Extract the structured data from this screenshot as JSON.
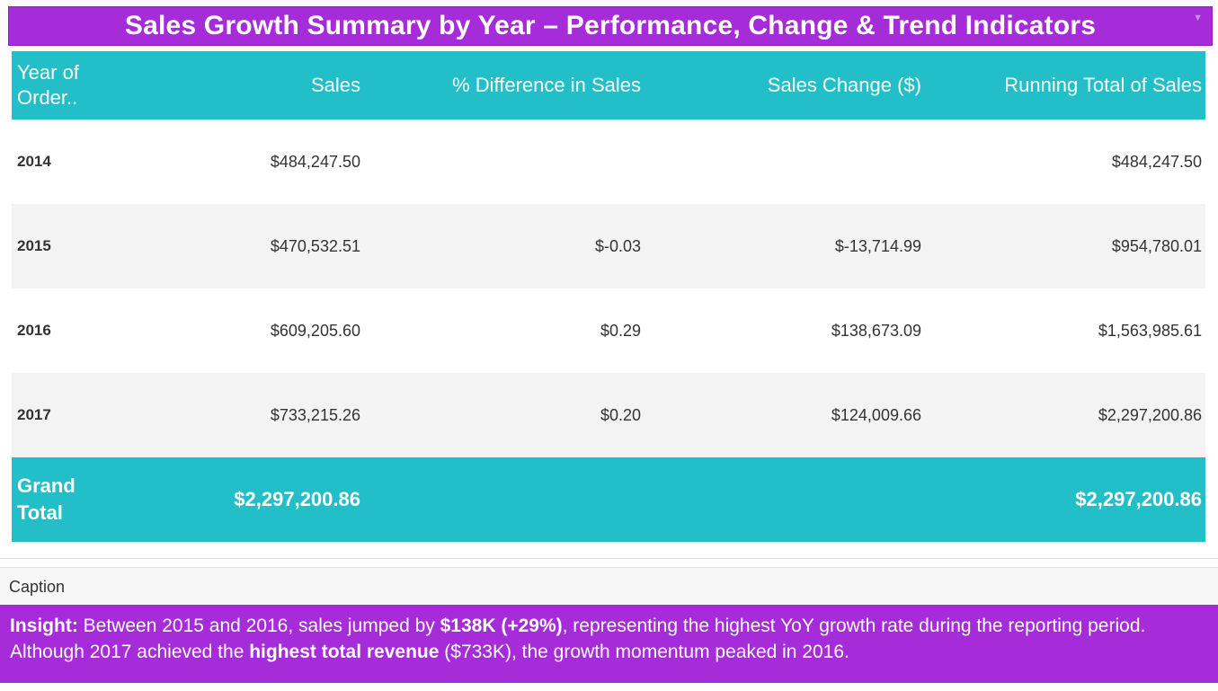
{
  "title": "Sales Growth Summary by Year – Performance, Change & Trend Indicators",
  "menu_glyph": "▼",
  "colors": {
    "accent_purple": "#a62bd9",
    "header_teal": "#22bfc8",
    "alt_row": "#f3f3f3"
  },
  "table": {
    "headers": [
      "Year of\nOrder..",
      "Sales",
      "% Difference in Sales",
      "Sales Change ($)",
      "Running Total of Sales"
    ],
    "header_year_line1": "Year of",
    "header_year_line2": "Order..",
    "rows": [
      {
        "year": "2014",
        "sales": "$484,247.50",
        "pct_diff": "",
        "change": "",
        "running_total": "$484,247.50"
      },
      {
        "year": "2015",
        "sales": "$470,532.51",
        "pct_diff": "$-0.03",
        "change": "$-13,714.99",
        "running_total": "$954,780.01"
      },
      {
        "year": "2016",
        "sales": "$609,205.60",
        "pct_diff": "$0.29",
        "change": "$138,673.09",
        "running_total": "$1,563,985.61"
      },
      {
        "year": "2017",
        "sales": "$733,215.26",
        "pct_diff": "$0.20",
        "change": "$124,009.66",
        "running_total": "$2,297,200.86"
      }
    ],
    "total": {
      "label_line1": "Grand",
      "label_line2": "Total",
      "sales": "$2,297,200.86",
      "running_total": "$2,297,200.86"
    }
  },
  "caption": {
    "label": "Caption",
    "insight": {
      "lead": "Insight:",
      "part1": " Between 2015 and 2016, sales jumped by ",
      "bold1": "$138K (+29%)",
      "part2": ", representing the highest YoY growth rate during the reporting period. Although 2017 achieved the ",
      "bold2": "highest total revenue",
      "part3": " ($733K), the growth momentum peaked in 2016."
    }
  }
}
